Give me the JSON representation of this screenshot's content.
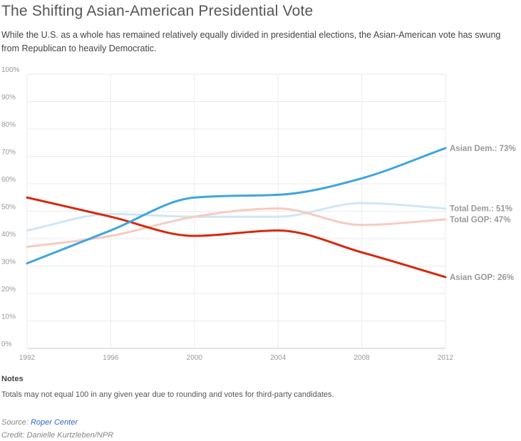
{
  "header": {
    "title": "The Shifting Asian-American Presidential Vote",
    "subtitle": "While the U.S. as a whole has remained relatively equally divided in presidential elections, the Asian-American vote has swung from Republican to heavily Democratic."
  },
  "chart_data": {
    "type": "line",
    "x": [
      1992,
      1996,
      2000,
      2004,
      2008,
      2012
    ],
    "x_ticks": [
      "1992",
      "1996",
      "2000",
      "2004",
      "2008",
      "2012"
    ],
    "y_ticks": [
      "0%",
      "10%",
      "20%",
      "30%",
      "40%",
      "50%",
      "60%",
      "70%",
      "80%",
      "90%",
      "100%"
    ],
    "ylim": [
      0,
      100
    ],
    "grid": true,
    "series": [
      {
        "key": "total_dem",
        "label": "Total Dem.: 51%",
        "color": "#cfe6f4",
        "label_color": "#999999",
        "values": [
          43,
          49,
          48,
          48,
          53,
          51
        ]
      },
      {
        "key": "total_gop",
        "label": "Total GOP: 47%",
        "color": "#f6cbc0",
        "label_color": "#999999",
        "values": [
          37,
          41,
          48,
          51,
          45,
          47
        ]
      },
      {
        "key": "asian_gop",
        "label": "Asian GOP: 26%",
        "color": "#d7280e",
        "label_color": "#999999",
        "values": [
          55,
          48,
          41,
          43,
          35,
          26
        ]
      },
      {
        "key": "asian_dem",
        "label": "Asian Dem.: 73%",
        "color": "#3fa6dc",
        "label_color": "#999999",
        "values": [
          31,
          43,
          55,
          56,
          62,
          73
        ]
      }
    ]
  },
  "notes": {
    "heading": "Notes",
    "text": "Totals may not equal 100 in any given year due to rounding and votes for third-party candidates."
  },
  "footer": {
    "source_prefix": "Source: ",
    "source_link": "Roper Center",
    "credit": "Credit: Danielle Kurtzleben/NPR"
  }
}
